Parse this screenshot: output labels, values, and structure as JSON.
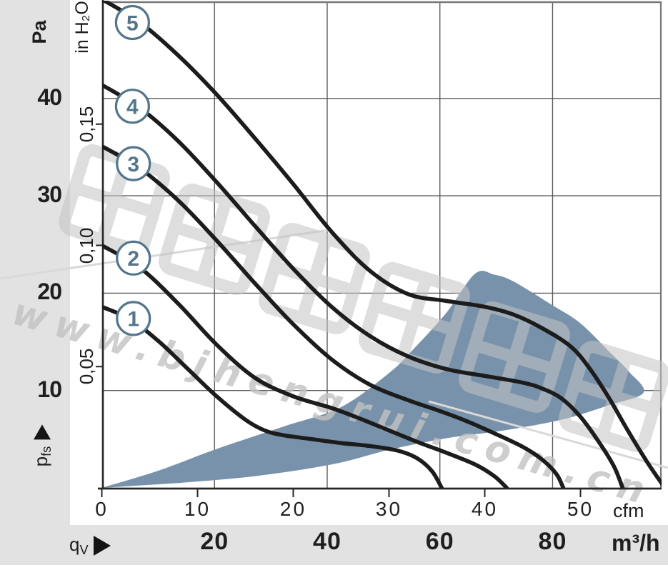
{
  "labels": {
    "pa_unit": "Pa",
    "inh2o_unit": "in H₂O",
    "cfm_unit": "cfm",
    "m3h_unit": "m³/h",
    "pfs_main": "p",
    "pfs_sub": "fs",
    "qv_main": "q",
    "qv_sub": "V"
  },
  "watermark": {
    "cjk_text": "恒瑞宏晟机电",
    "url_text": "www.bjhengrui.com.cn"
  },
  "colors": {
    "band_gray": "#e2e2e2",
    "curve_black": "#1c1c1c",
    "badge_blue": "#53768d",
    "region_blue": "#7892ab",
    "grid_gray": "#5a5a5a",
    "watermark_gray": "#c9c9c9"
  },
  "chart_data": {
    "type": "line",
    "title": "",
    "xlabel": "qV",
    "ylabel": "pfs",
    "grid": true,
    "x_axis": {
      "primary_unit": "cfm",
      "primary_ticks": [
        0,
        10,
        20,
        30,
        40,
        50
      ],
      "primary_tick_labels": [
        "0",
        "10",
        "20",
        "30",
        "40",
        "50"
      ],
      "secondary_unit": "m³/h",
      "secondary_ticks": [
        20,
        40,
        60,
        80
      ],
      "secondary_tick_labels": [
        "20",
        "40",
        "60",
        "80"
      ],
      "range_cfm": [
        0,
        58.5
      ]
    },
    "y_axis": {
      "primary_unit": "Pa",
      "primary_ticks": [
        40,
        30,
        20,
        10
      ],
      "primary_tick_labels": [
        "40",
        "30",
        "20",
        "10"
      ],
      "secondary_unit": "in H₂O",
      "secondary_ticks": [
        0.15,
        0.1,
        0.05
      ],
      "secondary_tick_labels": [
        "0,15",
        "0,10",
        "0,05"
      ],
      "range_pa": [
        0,
        50
      ]
    },
    "series": [
      {
        "name": "1",
        "label_at": [
          3.3,
          17.4
        ],
        "points": [
          [
            0,
            18.6
          ],
          [
            3,
            17.3
          ],
          [
            6,
            15.0
          ],
          [
            9,
            12.2
          ],
          [
            12,
            9.4
          ],
          [
            15,
            7.0
          ],
          [
            17,
            5.9
          ],
          [
            19,
            5.4
          ],
          [
            22,
            5.0
          ],
          [
            25,
            4.6
          ],
          [
            28,
            4.3
          ],
          [
            31,
            3.8
          ],
          [
            33,
            3.0
          ],
          [
            34.5,
            1.7
          ],
          [
            35.5,
            0
          ]
        ]
      },
      {
        "name": "2",
        "label_at": [
          3.3,
          23.6
        ],
        "points": [
          [
            0,
            24.9
          ],
          [
            4,
            22.6
          ],
          [
            8,
            18.9
          ],
          [
            12,
            14.7
          ],
          [
            16,
            11.3
          ],
          [
            20,
            9.4
          ],
          [
            24,
            8.2
          ],
          [
            27,
            7.1
          ],
          [
            30,
            5.9
          ],
          [
            33,
            4.7
          ],
          [
            36,
            3.6
          ],
          [
            39,
            2.4
          ],
          [
            41,
            1.2
          ],
          [
            42.3,
            0
          ]
        ]
      },
      {
        "name": "3",
        "label_at": [
          3.3,
          33.3
        ],
        "points": [
          [
            0,
            35.1
          ],
          [
            4,
            32.8
          ],
          [
            8,
            29.5
          ],
          [
            12,
            25.4
          ],
          [
            16,
            21.0
          ],
          [
            20,
            16.8
          ],
          [
            24,
            13.2
          ],
          [
            28,
            10.6
          ],
          [
            32,
            9.0
          ],
          [
            35,
            8.0
          ],
          [
            38,
            6.9
          ],
          [
            41,
            5.6
          ],
          [
            44,
            4.2
          ],
          [
            46,
            2.9
          ],
          [
            47.5,
            1.4
          ],
          [
            48.2,
            0
          ]
        ]
      },
      {
        "name": "4",
        "label_at": [
          3.2,
          39.2
        ],
        "points": [
          [
            0,
            41.4
          ],
          [
            4,
            39.0
          ],
          [
            8,
            35.6
          ],
          [
            12,
            31.4
          ],
          [
            16,
            26.9
          ],
          [
            20,
            22.5
          ],
          [
            24,
            18.6
          ],
          [
            28,
            15.6
          ],
          [
            32,
            13.5
          ],
          [
            36,
            12.2
          ],
          [
            40,
            11.5
          ],
          [
            44,
            10.8
          ],
          [
            46,
            10.2
          ],
          [
            48,
            9.2
          ],
          [
            50,
            7.3
          ],
          [
            52,
            4.6
          ],
          [
            53.5,
            2.2
          ],
          [
            54.4,
            0
          ]
        ]
      },
      {
        "name": "5",
        "label_at": [
          3.2,
          47.8
        ],
        "points": [
          [
            0,
            50.2
          ],
          [
            4,
            47.8
          ],
          [
            8,
            44.4
          ],
          [
            12,
            40.4
          ],
          [
            16,
            35.9
          ],
          [
            20,
            31.2
          ],
          [
            24,
            26.3
          ],
          [
            28,
            22.3
          ],
          [
            32,
            19.9
          ],
          [
            36,
            19.2
          ],
          [
            40,
            18.6
          ],
          [
            43,
            17.8
          ],
          [
            46,
            16.4
          ],
          [
            49,
            14.5
          ],
          [
            51,
            12.2
          ],
          [
            53,
            9.2
          ],
          [
            55,
            5.8
          ],
          [
            57,
            2.6
          ],
          [
            58.6,
            0.3
          ]
        ]
      }
    ],
    "operating_region": {
      "name": "recommended-operating-range",
      "color": "#7892ab",
      "upper": [
        [
          0,
          0
        ],
        [
          6,
          1.8
        ],
        [
          12,
          4.0
        ],
        [
          19,
          6.3
        ],
        [
          25,
          8.3
        ],
        [
          30,
          11.8
        ],
        [
          32.5,
          14.2
        ],
        [
          36,
          18.0
        ],
        [
          39,
          22.0
        ],
        [
          41,
          21.9
        ],
        [
          43,
          21.2
        ],
        [
          47,
          18.8
        ],
        [
          50,
          16.9
        ],
        [
          53,
          14.0
        ],
        [
          55,
          12.0
        ],
        [
          56.6,
          9.8
        ]
      ],
      "lower": [
        [
          0,
          0
        ],
        [
          8,
          0.5
        ],
        [
          16,
          1.2
        ],
        [
          24,
          2.4
        ],
        [
          30,
          3.9
        ],
        [
          36,
          5.1
        ],
        [
          42,
          5.9
        ],
        [
          48,
          7.0
        ],
        [
          53,
          8.5
        ],
        [
          56.6,
          9.8
        ]
      ]
    }
  }
}
